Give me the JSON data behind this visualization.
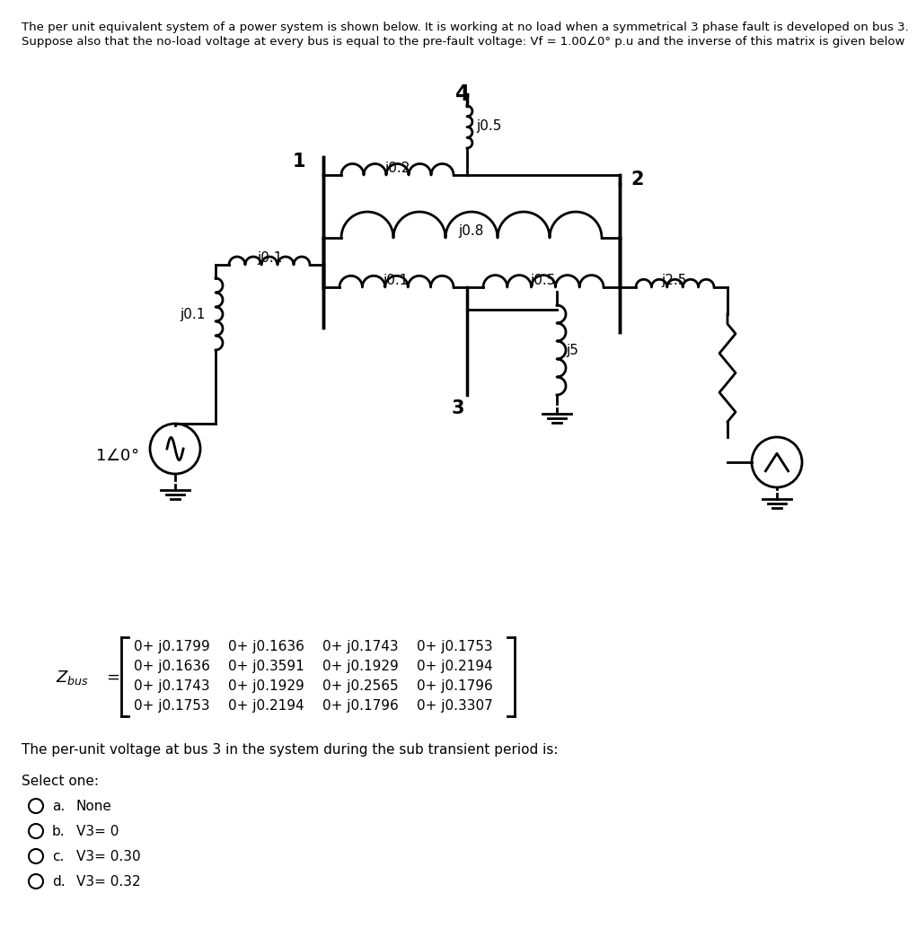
{
  "title_line1": "The per unit equivalent system of a power system is shown below. It is working at no load when a symmetrical 3 phase fault is developed on bus 3.",
  "title_line2": "Suppose also that the no-load voltage at every bus is equal to the pre-fault voltage: Vf = 1.00∠0° p.u and the inverse of this matrix is given below",
  "matrix": [
    [
      "0+ j0.1799",
      "0+ j0.1636",
      "0+ j0.1743",
      "0+ j0.1753"
    ],
    [
      "0+ j0.1636",
      "0+ j0.3591",
      "0+ j0.1929",
      "0+ j0.2194"
    ],
    [
      "0+ j0.1743",
      "0+ j0.1929",
      "0+ j0.2565",
      "0+ j0.1796"
    ],
    [
      "0+ j0.1753",
      "0+ j0.2194",
      "0+ j0.1796",
      "0+ j0.3307"
    ]
  ],
  "question_text": "The per-unit voltage at bus 3 in the system during the sub transient period is:",
  "select_one": "Select one:",
  "options": [
    [
      "a.",
      "None"
    ],
    [
      "b.",
      "V3= 0"
    ],
    [
      "c.",
      "V3= 0.30"
    ],
    [
      "d.",
      "V3= 0.32"
    ]
  ],
  "bg_color": "#ffffff",
  "text_color": "#000000"
}
